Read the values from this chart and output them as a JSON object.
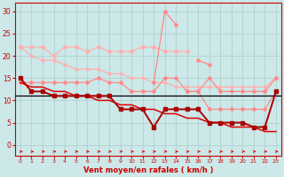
{
  "x": [
    0,
    1,
    2,
    3,
    4,
    5,
    6,
    7,
    8,
    9,
    10,
    11,
    12,
    13,
    14,
    15,
    16,
    17,
    18,
    19,
    20,
    21,
    22,
    23
  ],
  "line_upper_zigzag": [
    22,
    22,
    22,
    20,
    22,
    22,
    21,
    22,
    21,
    21,
    21,
    22,
    22,
    21,
    21,
    21,
    null,
    null,
    null,
    null,
    null,
    null,
    null,
    null
  ],
  "line_upper_diag": [
    22,
    20,
    19,
    19,
    18,
    17,
    17,
    17,
    16,
    16,
    15,
    15,
    14,
    14,
    13,
    13,
    13,
    13,
    13,
    13,
    13,
    13,
    13,
    15
  ],
  "line_spike": [
    null,
    null,
    null,
    null,
    null,
    null,
    null,
    null,
    null,
    null,
    null,
    null,
    14,
    30,
    27,
    null,
    19,
    18,
    null,
    null,
    null,
    null,
    null,
    null
  ],
  "line_medium_zigzag": [
    14,
    14,
    14,
    14,
    14,
    14,
    14,
    15,
    14,
    14,
    12,
    12,
    12,
    15,
    15,
    12,
    12,
    15,
    12,
    12,
    12,
    12,
    12,
    15
  ],
  "line_medium_lower": [
    null,
    null,
    null,
    null,
    null,
    null,
    null,
    null,
    null,
    null,
    null,
    null,
    null,
    null,
    null,
    12,
    12,
    8,
    8,
    8,
    8,
    8,
    8,
    12
  ],
  "line_dark_jagged": [
    15,
    12,
    12,
    11,
    11,
    11,
    11,
    11,
    11,
    8,
    8,
    8,
    4,
    8,
    8,
    8,
    8,
    5,
    5,
    5,
    5,
    4,
    4,
    12
  ],
  "line_trend": [
    14,
    13,
    13,
    12,
    12,
    11,
    11,
    10,
    10,
    9,
    9,
    8,
    8,
    7,
    7,
    6,
    6,
    5,
    5,
    4,
    4,
    4,
    3,
    3
  ],
  "line_black_horiz": 11,
  "background_color": "#cce8e8",
  "grid_color": "#aacccc",
  "color_light_pink": "#ffb0b0",
  "color_medium_pink": "#ff8888",
  "color_dark_red": "#dd0000",
  "color_darkest_red": "#aa0000",
  "color_black": "#000000",
  "xlabel": "Vent moyen/en rafales ( km/h )",
  "ylabel_ticks": [
    0,
    5,
    10,
    15,
    20,
    25,
    30
  ],
  "ylim": [
    -2.5,
    32
  ],
  "xlim": [
    -0.5,
    23.5
  ]
}
